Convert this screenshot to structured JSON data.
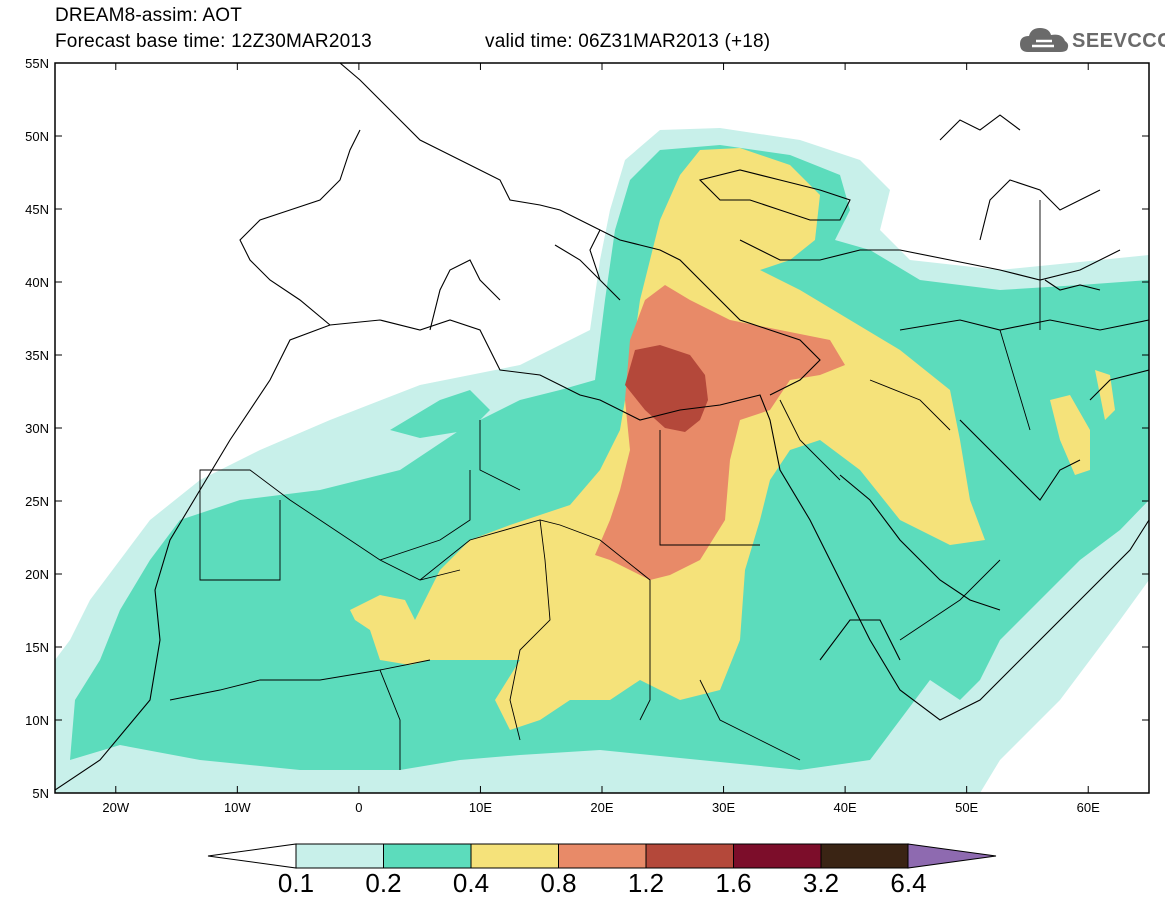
{
  "header": {
    "line1": "DREAM8-assim: AOT",
    "line2": "Forecast base time: 12Z30MAR2013",
    "valid": "valid time: 06Z31MAR2013 (+18)"
  },
  "logo": {
    "text": "SEEVCCC",
    "icon": "cloud-icon"
  },
  "map": {
    "lat_labels": [
      "55N",
      "50N",
      "45N",
      "40N",
      "35N",
      "30N",
      "25N",
      "20N",
      "15N",
      "10N",
      "5N"
    ],
    "lon_labels": [
      "20W",
      "10W",
      "0",
      "10E",
      "20E",
      "30E",
      "40E",
      "50E",
      "60E"
    ],
    "extent": {
      "lon": [
        -25,
        65
      ],
      "lat": [
        5,
        55
      ]
    }
  },
  "colorbar": {
    "labels": [
      "0.1",
      "0.2",
      "0.4",
      "0.8",
      "1.2",
      "1.6",
      "3.2",
      "6.4"
    ],
    "colors": [
      "#c8f0ea",
      "#5cdcbc",
      "#f5e27a",
      "#e88a68",
      "#b4483a",
      "#7c0d2a",
      "#3a2414",
      "#8e6ab0"
    ]
  }
}
